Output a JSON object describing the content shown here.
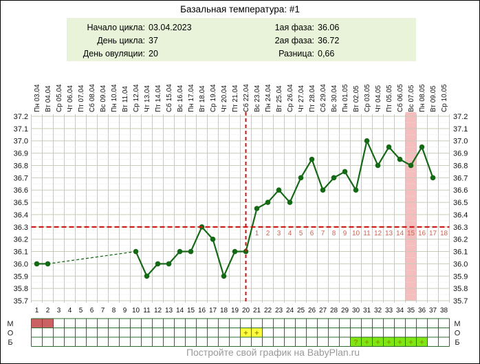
{
  "page": {
    "title": "Базальная температура: #1",
    "footer": "Постройте свой график на BabyPlan.ru"
  },
  "info_panel": {
    "left": [
      {
        "label": "Начало цикла:",
        "value": "03.04.2023"
      },
      {
        "label": "День цикла:",
        "value": "37"
      },
      {
        "label": "День овуляции:",
        "value": "20"
      }
    ],
    "right": [
      {
        "label": "1ая фаза:",
        "value": "36.06"
      },
      {
        "label": "2ая фаза:",
        "value": "36.72"
      },
      {
        "label": "Разница:",
        "value": "0,66"
      }
    ]
  },
  "colors": {
    "info_panel_bg": "#e9f3d9",
    "line": "#156815",
    "red_dashed": "#cc1111",
    "dpo_text": "#cc6655",
    "highlight_band": "#f5bebe",
    "grid": "#c6cbb8",
    "grid_minor": "#dfe2d4",
    "table_border": "#2d6a2d",
    "cell_red": "#cc6164",
    "cell_yellow": "#ffff40",
    "cell_green": "#7fe515",
    "mark_on_yellow": "#b08900",
    "mark_on_green": "#8f9900",
    "axis_text": "#111111",
    "footer_text": "#999999"
  },
  "chart_data": {
    "type": "line",
    "title": "Базальная температура: #1",
    "x_labels": [
      "Пн 03.04",
      "Вт 04.04",
      "Ср 05.04",
      "Чт 06.04",
      "Пт 07.04",
      "Сб 08.04",
      "Вс 09.04",
      "Пн 10.04",
      "Вт 11.04",
      "Ср 12.04",
      "Чт 13.04",
      "Пт 14.04",
      "Сб 15.04",
      "Вс 16.04",
      "Пн 17.04",
      "Вт 18.04",
      "Ср 19.04",
      "Чт 20.04",
      "Пт 21.04",
      "Сб 22.04",
      "Вс 23.04",
      "Пн 24.04",
      "Вт 25.04",
      "Ср 26.04",
      "Чт 27.04",
      "Пт 28.04",
      "Сб 29.04",
      "Вс 30.04",
      "Пн 01.05",
      "Вт 02.05",
      "Ср 03.05",
      "Чт 04.05",
      "Пт 05.05",
      "Сб 06.05",
      "Вс 07.05",
      "Пн 08.05",
      "Вт 09.05",
      "Ср 10.05"
    ],
    "day_numbers": [
      1,
      2,
      3,
      4,
      5,
      6,
      7,
      8,
      9,
      10,
      11,
      12,
      13,
      14,
      15,
      16,
      17,
      18,
      19,
      20,
      21,
      22,
      23,
      24,
      25,
      26,
      27,
      28,
      29,
      30,
      31,
      32,
      33,
      34,
      35,
      36,
      37,
      38
    ],
    "temperatures": [
      36.0,
      36.0,
      null,
      null,
      null,
      null,
      null,
      null,
      null,
      36.1,
      35.9,
      36.0,
      36.0,
      36.1,
      36.1,
      36.3,
      36.2,
      35.9,
      36.1,
      36.1,
      36.45,
      36.5,
      36.6,
      36.5,
      36.7,
      36.85,
      36.6,
      36.7,
      36.75,
      36.6,
      37.0,
      36.8,
      36.95,
      36.85,
      36.8,
      36.95,
      36.7,
      null
    ],
    "ylim": [
      35.7,
      37.2
    ],
    "y_ticks": [
      35.7,
      35.8,
      35.9,
      36.0,
      36.1,
      36.2,
      36.3,
      36.4,
      36.5,
      36.6,
      36.7,
      36.8,
      36.9,
      37.0,
      37.1,
      37.2
    ],
    "coverline_temp": 36.3,
    "ovulation_day": 20,
    "highlighted_day": 35,
    "dpo_start_day": 21,
    "dpo_numbers": [
      1,
      2,
      3,
      4,
      5,
      6,
      7,
      8,
      9,
      10,
      11,
      12,
      13,
      14,
      15,
      16,
      17,
      18
    ]
  },
  "symbol_rows": [
    {
      "label": "М",
      "name": "menstruation-row",
      "cells": [
        {
          "day": 1,
          "mark": "",
          "fill": "red"
        },
        {
          "day": 2,
          "mark": "",
          "fill": "red"
        }
      ]
    },
    {
      "label": "О",
      "name": "ovulation-test-row",
      "cells": [
        {
          "day": 20,
          "mark": "+",
          "fill": "yellow"
        },
        {
          "day": 21,
          "mark": "+",
          "fill": "yellow"
        }
      ]
    },
    {
      "label": "Б",
      "name": "pregnancy-test-row",
      "cells": [
        {
          "day": 30,
          "mark": "?",
          "fill": "green"
        },
        {
          "day": 31,
          "mark": "+",
          "fill": "green"
        },
        {
          "day": 32,
          "mark": "+",
          "fill": "green"
        },
        {
          "day": 33,
          "mark": "+",
          "fill": "green"
        },
        {
          "day": 34,
          "mark": "+",
          "fill": "green"
        },
        {
          "day": 35,
          "mark": "+",
          "fill": "green"
        },
        {
          "day": 36,
          "mark": "+",
          "fill": "green"
        }
      ]
    }
  ]
}
